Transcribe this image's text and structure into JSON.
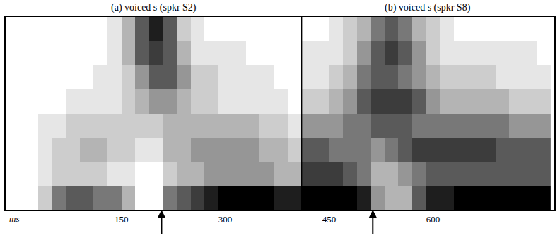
{
  "chart_data": {
    "type": "heatmap",
    "panels": [
      {
        "title": "(a) voiced s (spkr S2)",
        "xlim": [
          -17,
          410
        ]
      },
      {
        "title": "(b) voiced s (spkr S8)",
        "xlim": [
          410,
          775
        ]
      }
    ],
    "x_label": "ms",
    "xlim": [
      -17,
      775
    ],
    "xticks": [
      150,
      300,
      450,
      600
    ],
    "ylim": [
      -0.5,
      7.5
    ],
    "tick_labels": "x",
    "grid": false,
    "arrows": [
      208,
      513
    ],
    "zlim": [
      0,
      9
    ],
    "x": [
      0,
      20,
      40,
      60,
      80,
      100,
      120,
      140,
      160,
      180,
      200,
      220,
      240,
      260,
      280,
      300,
      320,
      340,
      360,
      380,
      400,
      420,
      440,
      460,
      480,
      500,
      520,
      540,
      560,
      580,
      600,
      620,
      640,
      660,
      680,
      700,
      720,
      740,
      760
    ],
    "y": [
      0,
      1,
      2,
      3,
      4,
      5,
      6,
      7
    ],
    "z": [
      [
        0,
        0,
        2,
        5,
        6,
        6,
        5,
        5,
        3,
        0,
        0,
        5,
        6,
        7,
        8,
        9,
        9,
        9,
        9,
        8,
        8,
        9,
        9,
        9,
        9,
        8,
        4,
        3,
        3,
        6,
        8,
        8,
        9,
        9,
        9,
        9,
        9,
        9,
        9
      ],
      [
        0,
        0,
        1,
        2,
        2,
        2,
        2,
        1,
        1,
        0,
        0,
        2,
        3,
        3,
        4,
        4,
        4,
        4,
        4,
        3,
        3,
        7,
        7,
        7,
        6,
        5,
        3,
        3,
        4,
        5,
        6,
        6,
        6,
        6,
        6,
        6,
        6,
        6,
        6
      ],
      [
        0,
        0,
        1,
        2,
        2,
        3,
        3,
        2,
        2,
        1,
        1,
        3,
        3,
        4,
        4,
        4,
        4,
        4,
        3,
        3,
        2,
        6,
        6,
        5,
        5,
        5,
        4,
        5,
        6,
        7,
        7,
        7,
        7,
        7,
        7,
        6,
        6,
        6,
        6
      ],
      [
        0,
        0,
        1,
        1,
        2,
        2,
        2,
        2,
        2,
        2,
        2,
        3,
        3,
        3,
        3,
        3,
        3,
        3,
        2,
        2,
        1,
        4,
        4,
        4,
        5,
        5,
        6,
        6,
        6,
        5,
        5,
        5,
        5,
        5,
        5,
        5,
        4,
        4,
        4
      ],
      [
        0,
        0,
        0,
        0,
        1,
        1,
        1,
        1,
        2,
        3,
        4,
        4,
        3,
        2,
        2,
        1,
        1,
        1,
        1,
        1,
        0,
        2,
        2,
        3,
        4,
        6,
        7,
        7,
        7,
        6,
        4,
        3,
        3,
        3,
        3,
        3,
        2,
        2,
        2
      ],
      [
        0,
        0,
        0,
        0,
        0,
        0,
        1,
        1,
        2,
        4,
        6,
        6,
        4,
        2,
        2,
        1,
        1,
        1,
        1,
        0,
        0,
        1,
        1,
        2,
        3,
        5,
        6,
        6,
        5,
        4,
        3,
        2,
        2,
        2,
        2,
        1,
        1,
        1,
        1
      ],
      [
        0,
        0,
        0,
        0,
        0,
        0,
        0,
        1,
        3,
        6,
        7,
        6,
        3,
        1,
        1,
        1,
        1,
        0,
        0,
        0,
        0,
        1,
        1,
        1,
        2,
        4,
        6,
        7,
        6,
        4,
        2,
        1,
        1,
        1,
        1,
        1,
        1,
        1,
        0
      ],
      [
        0,
        0,
        0,
        0,
        0,
        0,
        0,
        1,
        3,
        6,
        8,
        6,
        2,
        1,
        0,
        0,
        0,
        0,
        0,
        0,
        0,
        0,
        0,
        1,
        2,
        3,
        5,
        6,
        5,
        3,
        2,
        1,
        0,
        0,
        0,
        0,
        0,
        0,
        0
      ]
    ]
  }
}
